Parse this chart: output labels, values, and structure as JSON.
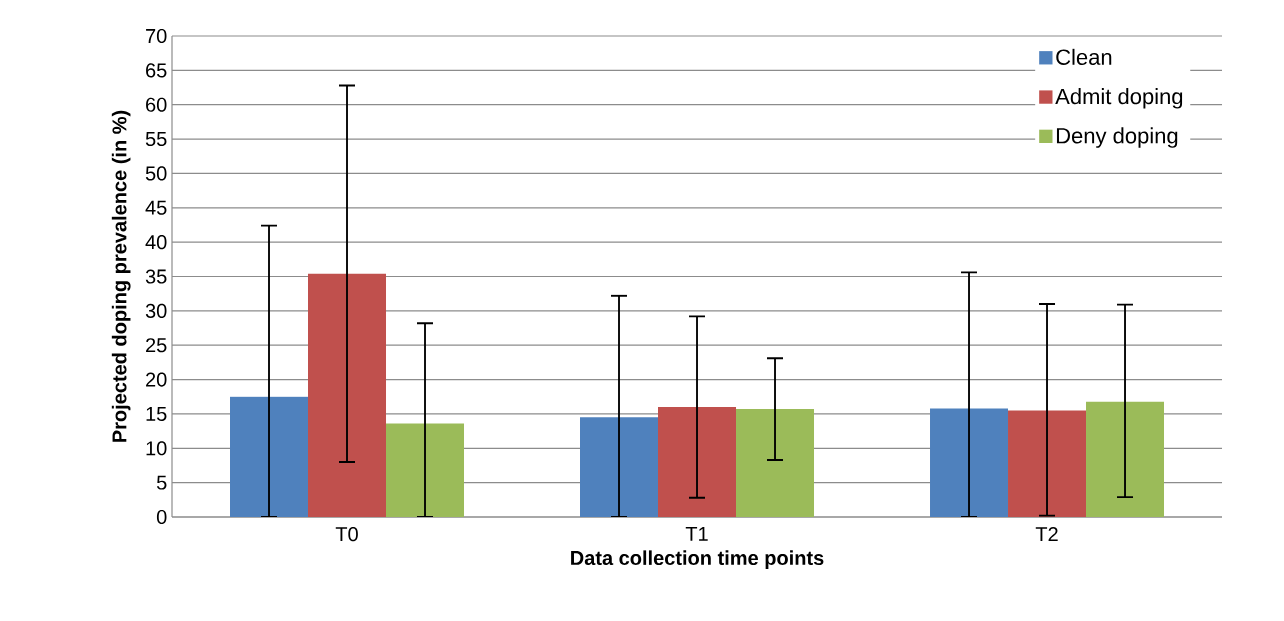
{
  "chart_data": {
    "type": "bar",
    "xlabel": "Data collection time points",
    "ylabel": "Projected doping prevalence (in %)",
    "categories": [
      "T0",
      "T1",
      "T2"
    ],
    "series": [
      {
        "name": "Clean",
        "color": "#4f81bd",
        "values": [
          17.5,
          14.5,
          15.8
        ],
        "errors": [
          [
            0,
            42.4
          ],
          [
            0,
            32.2
          ],
          [
            0,
            35.6
          ]
        ]
      },
      {
        "name": "Admit doping",
        "color": "#c0504d",
        "values": [
          35.4,
          16.0,
          15.5
        ],
        "errors": [
          [
            8.0,
            62.8
          ],
          [
            2.8,
            29.2
          ],
          [
            0.2,
            31.0
          ]
        ]
      },
      {
        "name": "Deny doping",
        "color": "#9bbb59",
        "values": [
          13.6,
          15.7,
          16.8
        ],
        "errors": [
          [
            0,
            28.2
          ],
          [
            8.3,
            23.1
          ],
          [
            2.9,
            30.9
          ]
        ]
      }
    ],
    "ylim": [
      0,
      70
    ],
    "yticks": [
      0,
      5,
      10,
      15,
      20,
      25,
      30,
      35,
      40,
      45,
      50,
      55,
      60,
      65,
      70
    ],
    "grid": "y",
    "legend": "top right"
  }
}
